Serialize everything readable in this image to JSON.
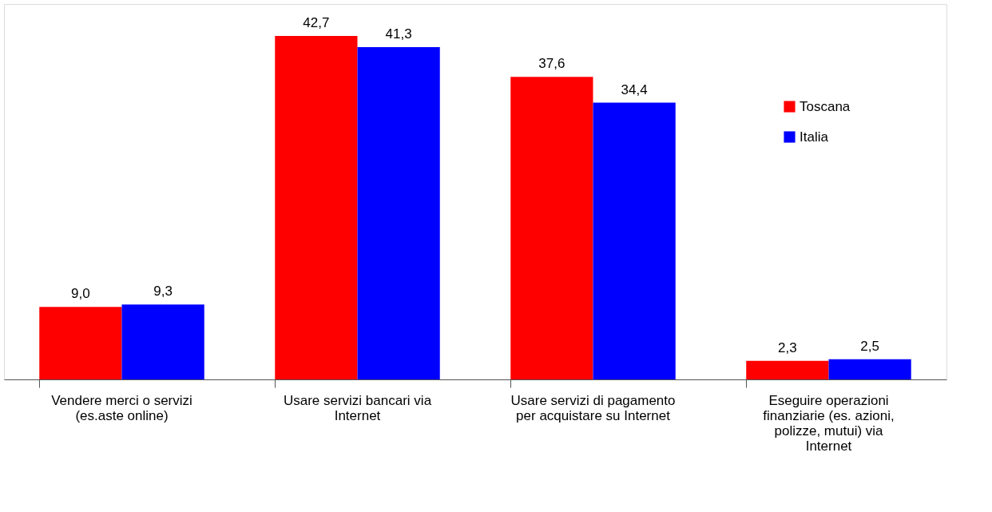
{
  "chart_data": {
    "type": "bar",
    "categories": [
      "Vendere merci o servizi (es.aste online)",
      "Usare servizi bancari  via Internet",
      "Usare servizi di pagamento per acquistare su Internet",
      "Eseguire operazioni finanziarie (es. azioni, polizze, mutui) via Internet"
    ],
    "series": [
      {
        "name": "Toscana",
        "color": "#ff0000",
        "values": [
          9.0,
          42.7,
          37.6,
          2.3
        ],
        "value_labels": [
          "9,0",
          "42,7",
          "37,6",
          "2,3"
        ]
      },
      {
        "name": "Italia",
        "color": "#0000ff",
        "values": [
          9.3,
          41.3,
          34.4,
          2.5
        ],
        "value_labels": [
          "9,3",
          "41,3",
          "34,4",
          "2,5"
        ]
      }
    ],
    "legend": "top right",
    "grid": false
  }
}
